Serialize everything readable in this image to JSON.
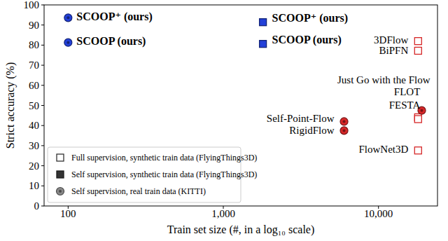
{
  "chart_data": {
    "type": "scatter",
    "x_label": "Train set size (#, in a log₁₀ scale)",
    "y_label": "Strict accuracy (%)",
    "log": "x",
    "xlim": [
      70,
      24000
    ],
    "xticks": [
      100,
      {
        "value": 1000,
        "label": "1,000"
      },
      {
        "value": 10000,
        "label": "10,000"
      }
    ],
    "ylim": [
      0,
      100
    ],
    "yticks": [
      0,
      10,
      20,
      30,
      40,
      50,
      60,
      70,
      80,
      90,
      100
    ],
    "legend": "lower left",
    "series": [
      {
        "name": "Full supervision, synthetic train data (FlyingThings3D)",
        "marker": "square-open",
        "color": "#d62728",
        "x": [
          18000,
          18000,
          18000,
          18000,
          18000
        ],
        "values": [
          82.0,
          77.2,
          44.1,
          43.2,
          27.6
        ],
        "point_labels": [
          "3DFlow",
          "BiPFN",
          "FLOT",
          "FESTA",
          "FlowNet3D"
        ]
      },
      {
        "name": "Self supervision, synthetic train data (FlyingThings3D)",
        "marker": "square",
        "color": "#2340d8",
        "x": [
          1800,
          1800
        ],
        "values": [
          91.4,
          80.6
        ],
        "point_labels": [
          "SCOOP⁺ (ours)",
          "SCOOP (ours)"
        ]
      },
      {
        "name": "Self supervision, real train data (KITTI)",
        "marker": "circle",
        "colors": [
          "#2340d8",
          "#2340d8",
          "#d62728",
          "#d62728",
          "#d62728"
        ],
        "x": [
          100,
          100,
          6000,
          6000,
          19000
        ],
        "values": [
          93.6,
          81.3,
          42.0,
          37.5,
          47.5
        ],
        "point_labels": [
          "SCOOP⁺ (ours)",
          "SCOOP (ours)",
          "Self-Point-Flow",
          "RigidFlow",
          "Just Go with the Flow"
        ]
      }
    ]
  }
}
